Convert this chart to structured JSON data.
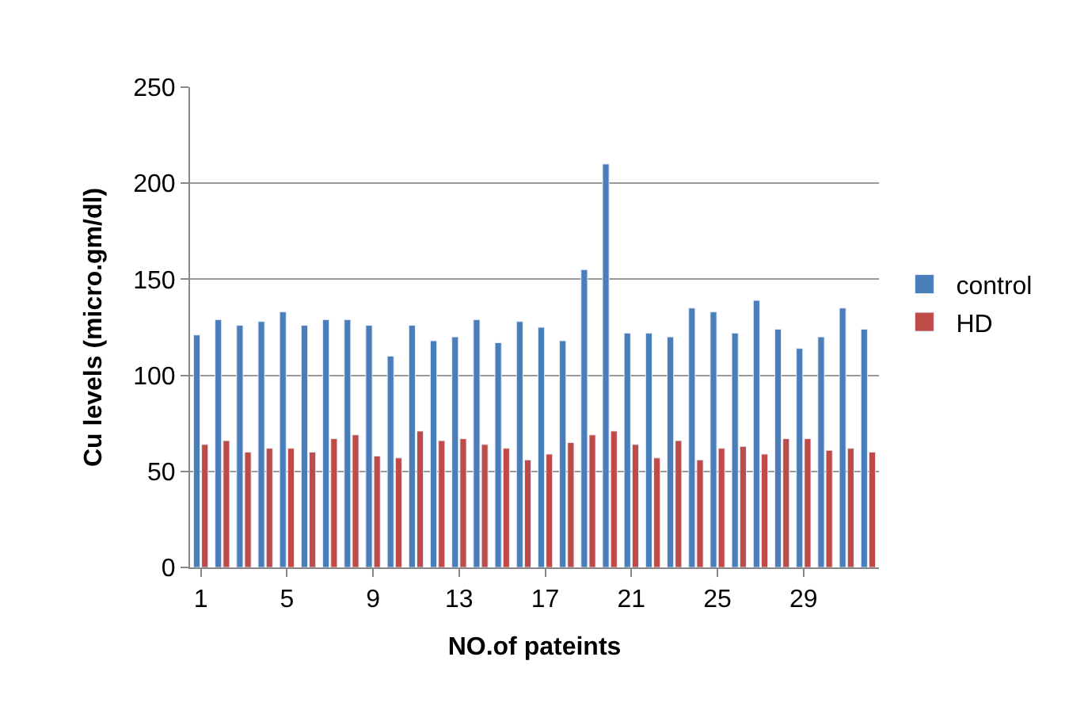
{
  "chart_data": {
    "type": "bar",
    "xlabel": "NO.of pateints",
    "ylabel": "Cu levels (micro.gm/dl)",
    "categories": [
      "1",
      null,
      null,
      null,
      "5",
      null,
      null,
      null,
      "9",
      null,
      null,
      null,
      "13",
      null,
      null,
      null,
      "17",
      null,
      null,
      null,
      "21",
      null,
      null,
      null,
      "25",
      null,
      null,
      null,
      "29",
      null,
      null,
      null
    ],
    "series": [
      {
        "name": "control",
        "color": "#4a7ebb",
        "values": [
          121,
          129,
          126,
          128,
          133,
          126,
          129,
          129,
          126,
          110,
          126,
          118,
          120,
          129,
          117,
          128,
          125,
          118,
          155,
          210,
          122,
          122,
          120,
          135,
          133,
          122,
          139,
          124,
          114,
          120,
          135,
          124
        ]
      },
      {
        "name": "HD",
        "color": "#be4b48",
        "values": [
          64,
          66,
          60,
          62,
          62,
          60,
          67,
          69,
          58,
          57,
          71,
          66,
          67,
          64,
          62,
          56,
          59,
          65,
          69,
          71,
          64,
          57,
          66,
          56,
          62,
          63,
          59,
          67,
          67,
          61,
          62,
          60
        ]
      }
    ],
    "ylim": [
      0,
      250
    ],
    "yticks": [
      0,
      50,
      100,
      150,
      200,
      250
    ],
    "grid": "y",
    "legend": "right"
  }
}
